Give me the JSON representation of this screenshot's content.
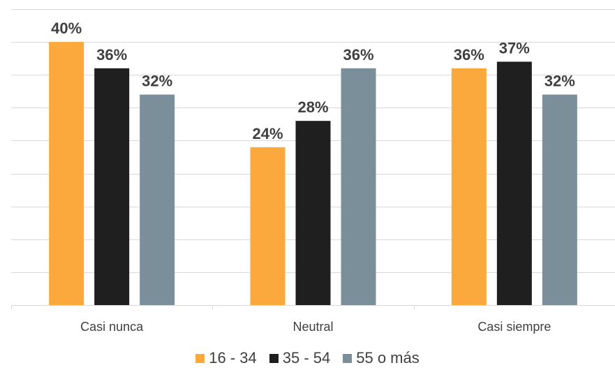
{
  "chart_data": {
    "type": "bar",
    "categories": [
      "Casi nunca",
      "Neutral",
      "Casi siempre"
    ],
    "series": [
      {
        "name": "16 - 34",
        "values": [
          40,
          24,
          36
        ],
        "color": "#FBA93C",
        "labels": [
          "40%",
          "24%",
          "36%"
        ]
      },
      {
        "name": "35 - 54",
        "values": [
          36,
          28,
          37
        ],
        "color": "#1F1F1F",
        "labels": [
          "36%",
          "28%",
          "37%"
        ]
      },
      {
        "name": "55 o más",
        "values": [
          32,
          36,
          32
        ],
        "color": "#7A8F9A",
        "labels": [
          "32%",
          "36%",
          "32%"
        ]
      }
    ],
    "ylim": [
      0,
      45
    ],
    "grid": true,
    "legend_position": "bottom",
    "colors": {
      "grid": "#D9D9D9",
      "axis_text": "#404040",
      "data_label": "#404040"
    }
  }
}
